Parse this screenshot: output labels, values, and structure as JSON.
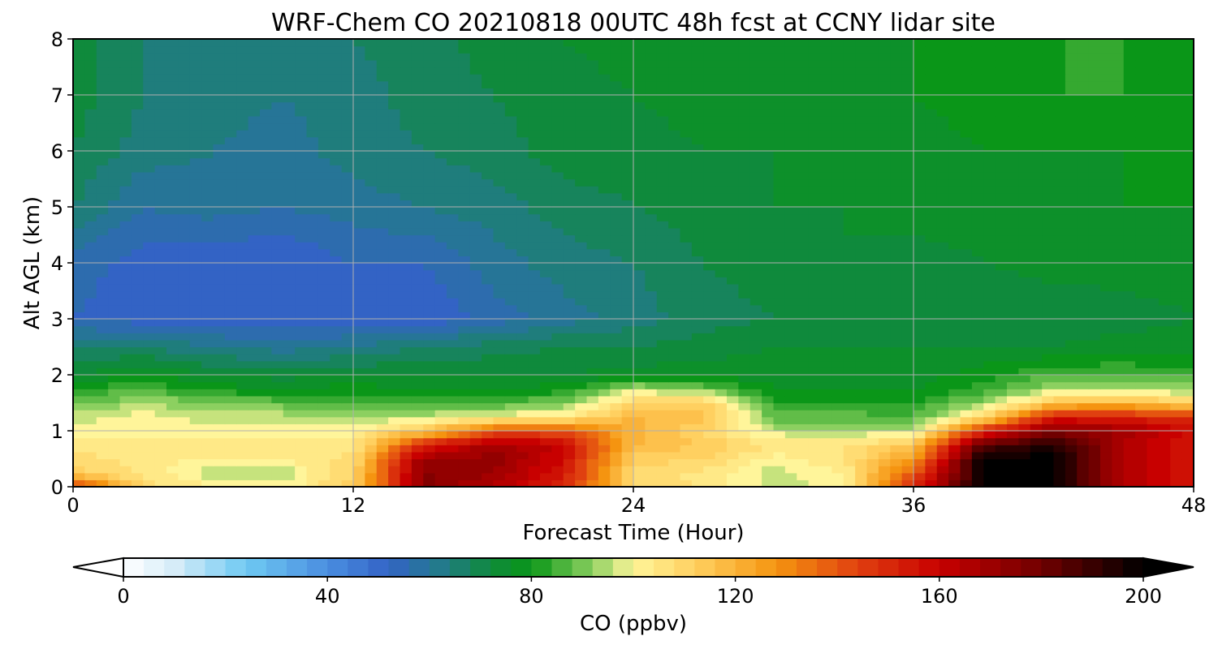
{
  "chart_data": {
    "type": "heatmap",
    "title": "WRF-Chem CO  20210818 00UTC 48h fcst at CCNY lidar site",
    "xlabel": "Forecast Time (Hour)",
    "ylabel": "Alt AGL (km)",
    "xlim": [
      0,
      48
    ],
    "ylim": [
      0,
      8
    ],
    "xticks": [
      0,
      12,
      24,
      36,
      48
    ],
    "yticks": [
      0,
      1,
      2,
      3,
      4,
      5,
      6,
      7,
      8
    ],
    "grid": true,
    "x_hours": [
      0,
      3,
      6,
      9,
      12,
      15,
      18,
      21,
      24,
      27,
      30,
      33,
      36,
      39,
      42,
      45,
      48
    ],
    "y_km": [
      0,
      0.25,
      0.5,
      0.75,
      1,
      1.25,
      1.5,
      1.75,
      2,
      2.5,
      3,
      4,
      5,
      6,
      7,
      8
    ],
    "values_ppbv": [
      [
        150,
        108,
        102,
        100,
        112,
        175,
        165,
        150,
        110,
        105,
        96,
        100,
        150,
        200,
        200,
        165,
        155
      ],
      [
        112,
        105,
        95,
        95,
        110,
        175,
        170,
        155,
        108,
        105,
        96,
        102,
        140,
        200,
        200,
        165,
        155
      ],
      [
        108,
        104,
        102,
        102,
        108,
        170,
        172,
        158,
        112,
        110,
        100,
        105,
        125,
        200,
        200,
        165,
        155
      ],
      [
        105,
        103,
        103,
        103,
        104,
        150,
        170,
        160,
        118,
        114,
        105,
        106,
        114,
        185,
        195,
        165,
        155
      ],
      [
        100,
        100,
        100,
        100,
        100,
        115,
        140,
        140,
        120,
        110,
        96,
        94,
        95,
        150,
        175,
        170,
        155
      ],
      [
        96,
        100,
        96,
        96,
        94,
        96,
        100,
        104,
        118,
        118,
        88,
        88,
        86,
        108,
        155,
        150,
        150
      ],
      [
        88,
        94,
        90,
        88,
        86,
        86,
        86,
        90,
        110,
        112,
        82,
        82,
        82,
        92,
        115,
        120,
        110
      ],
      [
        82,
        86,
        80,
        78,
        80,
        78,
        78,
        80,
        96,
        90,
        78,
        78,
        78,
        84,
        94,
        96,
        92
      ],
      [
        74,
        78,
        74,
        72,
        74,
        74,
        74,
        74,
        76,
        76,
        76,
        76,
        76,
        80,
        86,
        86,
        84
      ],
      [
        66,
        66,
        62,
        60,
        62,
        66,
        68,
        70,
        70,
        72,
        74,
        74,
        74,
        74,
        74,
        76,
        76
      ],
      [
        54,
        52,
        52,
        52,
        52,
        50,
        56,
        60,
        64,
        68,
        70,
        72,
        72,
        70,
        70,
        72,
        74
      ],
      [
        56,
        52,
        50,
        50,
        54,
        54,
        60,
        64,
        66,
        70,
        72,
        74,
        72,
        74,
        76,
        76,
        76
      ],
      [
        66,
        58,
        60,
        58,
        60,
        62,
        64,
        68,
        70,
        72,
        74,
        74,
        76,
        76,
        76,
        78,
        78
      ],
      [
        70,
        64,
        62,
        60,
        64,
        66,
        68,
        72,
        72,
        74,
        74,
        76,
        76,
        78,
        78,
        78,
        78
      ],
      [
        72,
        66,
        64,
        62,
        64,
        68,
        70,
        72,
        74,
        76,
        74,
        76,
        78,
        80,
        82,
        82,
        80
      ],
      [
        72,
        66,
        64,
        62,
        66,
        68,
        72,
        74,
        76,
        76,
        76,
        76,
        78,
        80,
        82,
        82,
        80
      ]
    ],
    "colorbar": {
      "label": "CO  (ppbv)",
      "ticks": [
        0,
        40,
        80,
        120,
        160,
        200
      ],
      "range": [
        0,
        200
      ],
      "extend": "both"
    },
    "colormap_stops": [
      [
        0,
        "#ffffff"
      ],
      [
        10,
        "#d6ecf8"
      ],
      [
        24,
        "#6ec9f2"
      ],
      [
        40,
        "#4a8ee0"
      ],
      [
        52,
        "#3363c5"
      ],
      [
        62,
        "#237a8c"
      ],
      [
        72,
        "#0f8a3c"
      ],
      [
        80,
        "#0a9618"
      ],
      [
        92,
        "#8cd060"
      ],
      [
        100,
        "#fff59a"
      ],
      [
        112,
        "#ffd060"
      ],
      [
        128,
        "#f59410"
      ],
      [
        144,
        "#e04010"
      ],
      [
        160,
        "#c80000"
      ],
      [
        180,
        "#700000"
      ],
      [
        200,
        "#000000"
      ]
    ]
  }
}
